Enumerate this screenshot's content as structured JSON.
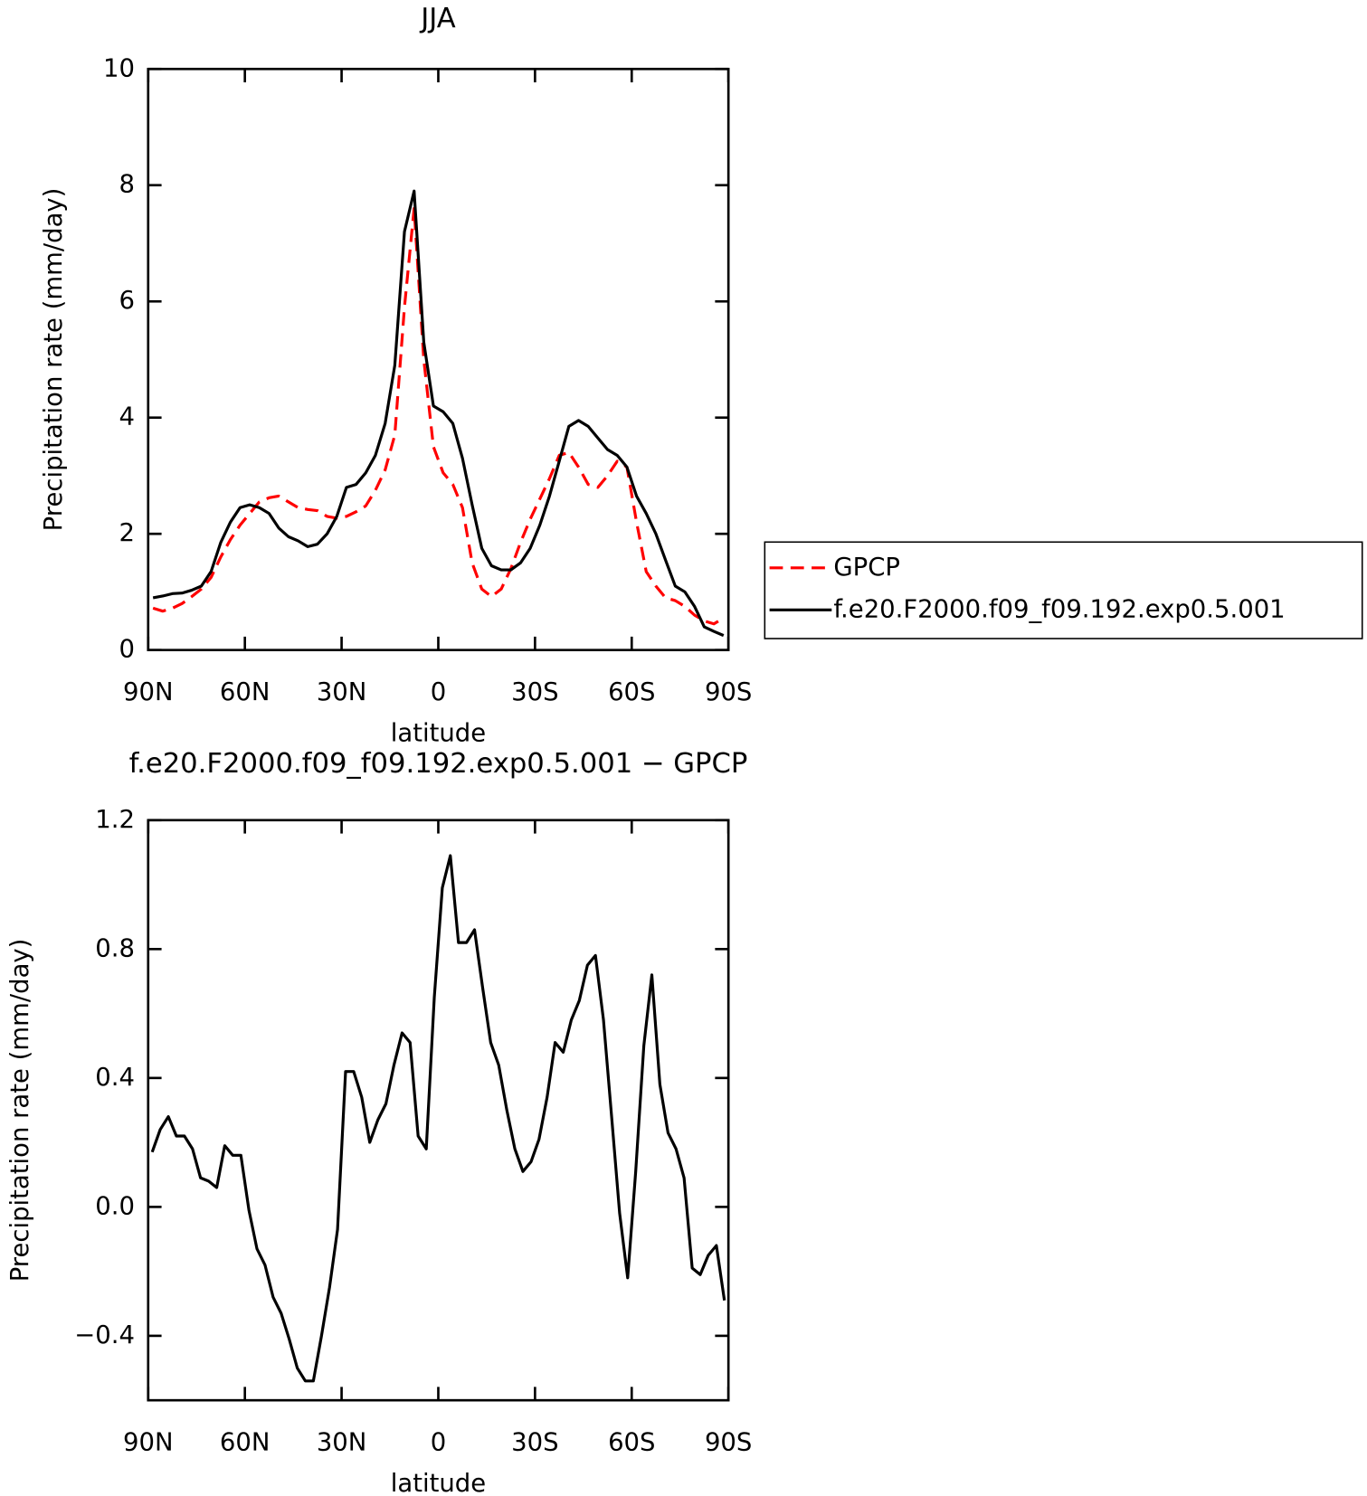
{
  "chart_data": [
    {
      "type": "line",
      "title": "JJA",
      "x_label": "latitude",
      "y_label": "Precipitation rate (mm/day)",
      "x": [
        88.5,
        85.5,
        82.5,
        79.5,
        76.5,
        73.5,
        70.5,
        67.5,
        64.5,
        61.5,
        58.5,
        55.5,
        52.5,
        49.5,
        46.5,
        43.5,
        40.5,
        37.5,
        34.5,
        31.5,
        28.5,
        25.5,
        22.5,
        19.5,
        16.5,
        13.5,
        10.5,
        7.5,
        4.5,
        1.5,
        -1.5,
        -4.5,
        -7.5,
        -10.5,
        -13.5,
        -16.5,
        -19.5,
        -22.5,
        -25.5,
        -28.5,
        -31.5,
        -34.5,
        -37.5,
        -40.5,
        -43.5,
        -46.5,
        -49.5,
        -52.5,
        -55.5,
        -58.5,
        -61.5,
        -64.5,
        -67.5,
        -70.5,
        -73.5,
        -76.5,
        -79.5,
        -82.5,
        -85.5,
        -88.5
      ],
      "series": [
        {
          "name": "GPCP",
          "color": "#ff0000",
          "line_style": "dashed",
          "values": [
            0.72,
            0.67,
            0.72,
            0.8,
            0.92,
            1.05,
            1.25,
            1.6,
            1.9,
            2.15,
            2.35,
            2.55,
            2.62,
            2.65,
            2.55,
            2.45,
            2.42,
            2.4,
            2.3,
            2.27,
            2.3,
            2.38,
            2.48,
            2.75,
            3.1,
            3.7,
            5.9,
            7.6,
            5.0,
            3.5,
            3.05,
            2.85,
            2.45,
            1.5,
            1.05,
            0.92,
            1.05,
            1.4,
            1.85,
            2.25,
            2.6,
            2.95,
            3.35,
            3.4,
            3.15,
            2.85,
            2.8,
            3.0,
            3.25,
            3.15,
            2.2,
            1.35,
            1.1,
            0.9,
            0.85,
            0.75,
            0.6,
            0.5,
            0.45,
            0.55
          ]
        },
        {
          "name": "f.e20.F2000.f09_f09.192.exp0.5.001",
          "color": "#000000",
          "line_style": "solid",
          "values": [
            0.9,
            0.93,
            0.97,
            0.98,
            1.03,
            1.1,
            1.35,
            1.85,
            2.2,
            2.45,
            2.5,
            2.45,
            2.35,
            2.1,
            1.95,
            1.88,
            1.78,
            1.82,
            2.0,
            2.3,
            2.8,
            2.85,
            3.05,
            3.35,
            3.9,
            4.9,
            7.2,
            7.9,
            5.3,
            4.2,
            4.1,
            3.9,
            3.3,
            2.5,
            1.75,
            1.45,
            1.38,
            1.38,
            1.5,
            1.75,
            2.15,
            2.65,
            3.25,
            3.85,
            3.95,
            3.85,
            3.65,
            3.45,
            3.35,
            3.15,
            2.65,
            2.35,
            2.0,
            1.55,
            1.1,
            1.0,
            0.75,
            0.4,
            0.32,
            0.25
          ]
        }
      ],
      "xlim": [
        90,
        -90
      ],
      "xticks": [
        {
          "value": 90,
          "label": "90N"
        },
        {
          "value": 60,
          "label": "60N"
        },
        {
          "value": 30,
          "label": "30N"
        },
        0,
        {
          "value": -30,
          "label": "30S"
        },
        {
          "value": -60,
          "label": "60S"
        },
        {
          "value": -90,
          "label": "90S"
        }
      ],
      "ylim": [
        0,
        10
      ],
      "yticks": [
        0,
        2,
        4,
        6,
        8,
        10
      ],
      "grid": false,
      "legend": "right"
    },
    {
      "type": "line",
      "title": "f.e20.F2000.f09_f09.192.exp0.5.001 − GPCP",
      "x_label": "latitude",
      "y_label": "Precipitation rate (mm/day)",
      "x": [
        88.75,
        86.25,
        83.75,
        81.25,
        78.75,
        76.25,
        73.75,
        71.25,
        68.75,
        66.25,
        63.75,
        61.25,
        58.75,
        56.25,
        53.75,
        51.25,
        48.75,
        46.25,
        43.75,
        41.25,
        38.75,
        36.25,
        33.75,
        31.25,
        28.75,
        26.25,
        23.75,
        21.25,
        18.75,
        16.25,
        13.75,
        11.25,
        8.75,
        6.25,
        3.75,
        1.25,
        -1.25,
        -3.75,
        -6.25,
        -8.75,
        -11.25,
        -13.75,
        -16.25,
        -18.75,
        -21.25,
        -23.75,
        -26.25,
        -28.75,
        -31.25,
        -33.75,
        -36.25,
        -38.75,
        -41.25,
        -43.75,
        -46.25,
        -48.75,
        -51.25,
        -53.75,
        -56.25,
        -58.75,
        -61.25,
        -63.75,
        -66.25,
        -68.75,
        -71.25,
        -73.75,
        -76.25,
        -78.75,
        -81.25,
        -83.75,
        -86.25,
        -88.75
      ],
      "series": [
        {
          "color": "#000000",
          "line_style": "solid",
          "values": [
            0.17,
            0.24,
            0.28,
            0.22,
            0.22,
            0.18,
            0.09,
            0.08,
            0.06,
            0.19,
            0.16,
            0.16,
            -0.01,
            -0.13,
            -0.18,
            -0.28,
            -0.33,
            -0.41,
            -0.5,
            -0.54,
            -0.54,
            -0.4,
            -0.25,
            -0.07,
            0.42,
            0.42,
            0.34,
            0.2,
            0.27,
            0.32,
            0.44,
            0.54,
            0.51,
            0.22,
            0.18,
            0.65,
            0.99,
            1.09,
            0.82,
            0.82,
            0.86,
            0.68,
            0.51,
            0.44,
            0.3,
            0.18,
            0.11,
            0.14,
            0.21,
            0.34,
            0.51,
            0.48,
            0.58,
            0.64,
            0.75,
            0.78,
            0.58,
            0.28,
            -0.02,
            -0.22,
            0.11,
            0.5,
            0.72,
            0.38,
            0.23,
            0.18,
            0.09,
            -0.19,
            -0.21,
            -0.15,
            -0.12,
            -0.29
          ]
        }
      ],
      "xlim": [
        90,
        -90
      ],
      "xticks": [
        {
          "value": 90,
          "label": "90N"
        },
        {
          "value": 60,
          "label": "60N"
        },
        {
          "value": 30,
          "label": "30N"
        },
        0,
        {
          "value": -30,
          "label": "30S"
        },
        {
          "value": -60,
          "label": "60S"
        },
        {
          "value": -90,
          "label": "90S"
        }
      ],
      "ylim": [
        -0.6,
        1.2
      ],
      "yticks": [
        {
          "value": -0.4,
          "label": "−0.4"
        },
        {
          "value": 0,
          "label": "0.0"
        },
        0.4,
        0.8,
        1.2
      ],
      "grid": false
    }
  ]
}
